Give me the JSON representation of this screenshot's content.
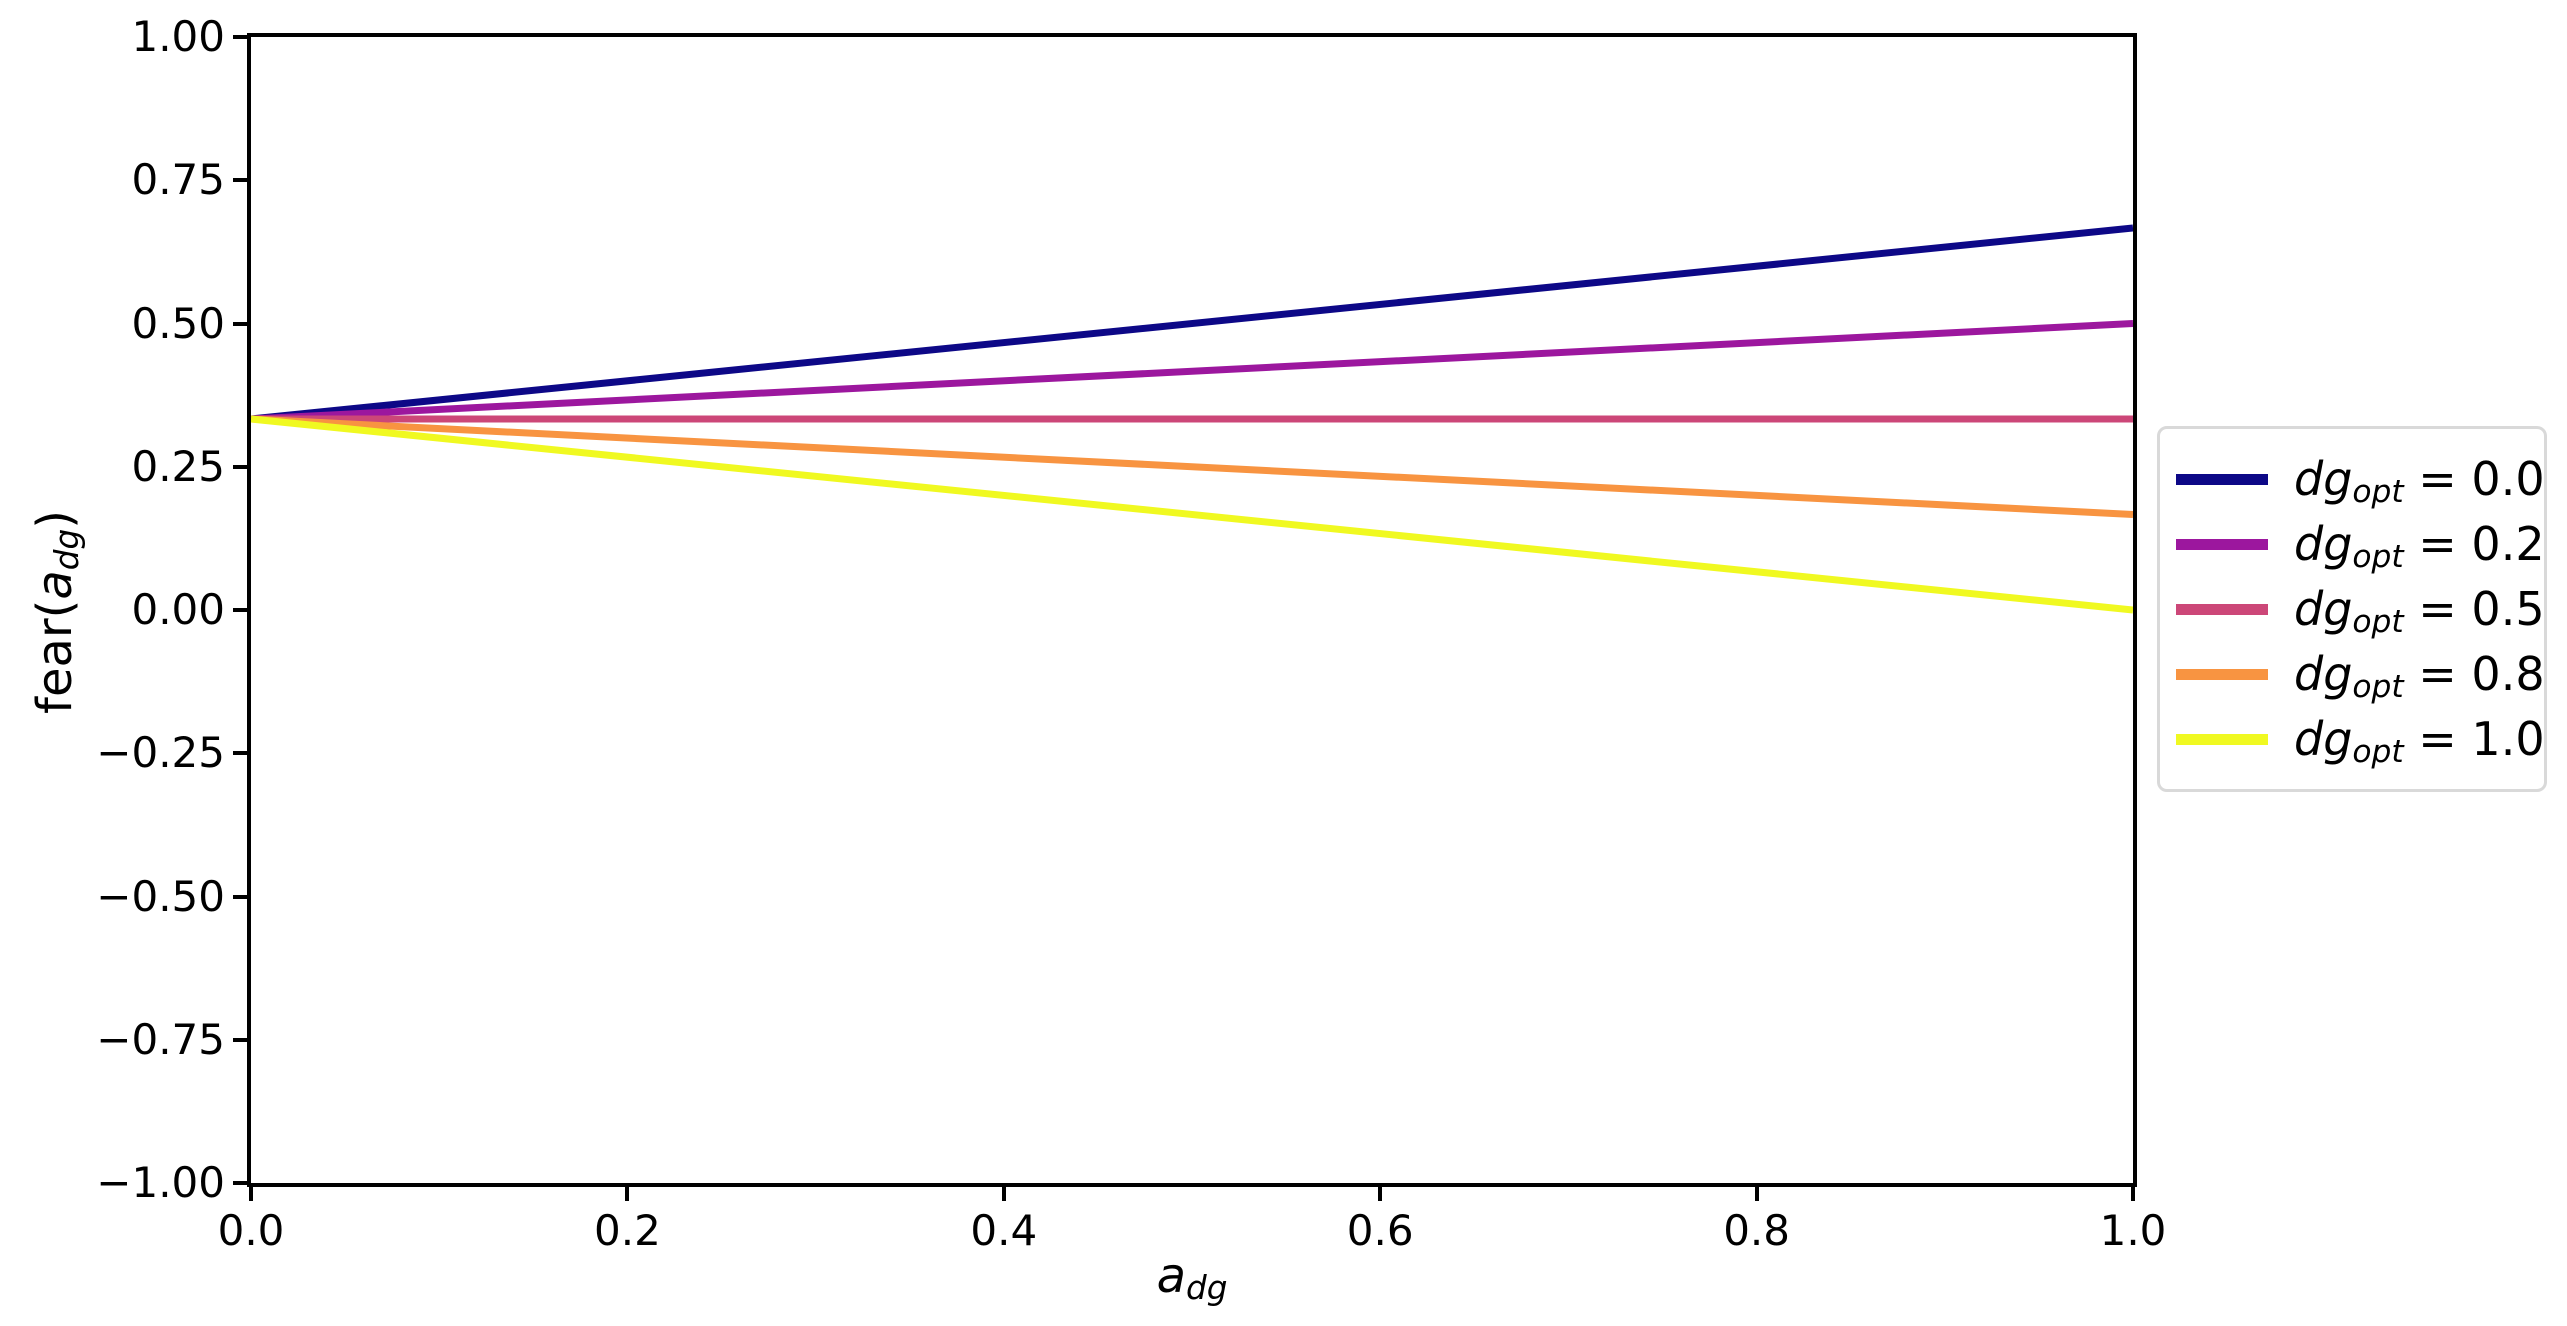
{
  "figure": {
    "background": "#ffffff",
    "spine_color": "#000000",
    "text_color": "#000000",
    "legend_border_color": "#d9d9d9"
  },
  "chart_data": {
    "type": "line",
    "title": "",
    "xlabel": {
      "base": "a",
      "sub": "dg",
      "text": "a_dg"
    },
    "ylabel": {
      "prefix": "fear(",
      "base": "a",
      "sub": "dg",
      "suffix": ")",
      "text": "fear(a_dg)"
    },
    "xlim": [
      0.0,
      1.0
    ],
    "ylim": [
      -1.0,
      1.0
    ],
    "grid": false,
    "xticks": {
      "values": [
        0.0,
        0.2,
        0.4,
        0.6,
        0.8,
        1.0
      ],
      "labels": [
        "0.0",
        "0.2",
        "0.4",
        "0.6",
        "0.8",
        "1.0"
      ]
    },
    "yticks": {
      "values": [
        1.0,
        0.75,
        0.5,
        0.25,
        0.0,
        -0.25,
        -0.5,
        -0.75,
        -1.0
      ],
      "labels": [
        "1.00",
        "0.75",
        "0.50",
        "0.25",
        "0.00",
        "−0.25",
        "−0.50",
        "−0.75",
        "−1.00"
      ]
    },
    "legend": {
      "position": "center-right-outside",
      "entries": [
        {
          "var": "dg",
          "sub": "opt",
          "equals": " = ",
          "value": "0.0"
        },
        {
          "var": "dg",
          "sub": "opt",
          "equals": " = ",
          "value": "0.2"
        },
        {
          "var": "dg",
          "sub": "opt",
          "equals": " = ",
          "value": "0.5"
        },
        {
          "var": "dg",
          "sub": "opt",
          "equals": " = ",
          "value": "0.8"
        },
        {
          "var": "dg",
          "sub": "opt",
          "equals": " = ",
          "value": "1.0"
        }
      ]
    },
    "series": [
      {
        "label_text": "dg_opt = 0.0",
        "color": "#0d0887",
        "x": [
          0.0,
          1.0
        ],
        "y": [
          0.3333,
          0.6667
        ]
      },
      {
        "label_text": "dg_opt = 0.2",
        "color": "#9c179e",
        "x": [
          0.0,
          1.0
        ],
        "y": [
          0.3333,
          0.5
        ]
      },
      {
        "label_text": "dg_opt = 0.5",
        "color": "#cc4778",
        "x": [
          0.0,
          1.0
        ],
        "y": [
          0.3333,
          0.3333
        ]
      },
      {
        "label_text": "dg_opt = 0.8",
        "color": "#f89441",
        "x": [
          0.0,
          1.0
        ],
        "y": [
          0.3333,
          0.1667
        ]
      },
      {
        "label_text": "dg_opt = 1.0",
        "color": "#f0f921",
        "x": [
          0.0,
          1.0
        ],
        "y": [
          0.3333,
          0.0
        ]
      }
    ]
  }
}
